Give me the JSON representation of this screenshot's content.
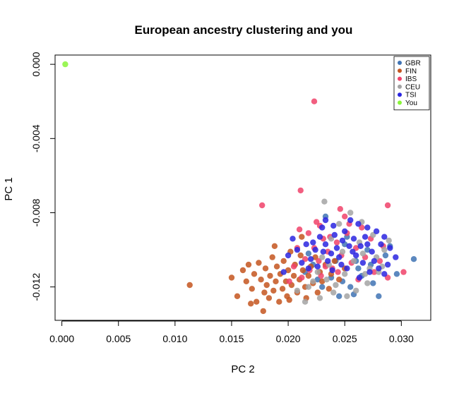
{
  "chart_data": {
    "type": "scatter",
    "title": "European ancestry clustering and you",
    "xlabel": "PC 2",
    "ylabel": "PC 1",
    "xlim": [
      -0.0006,
      0.0326
    ],
    "ylim": [
      -0.0138,
      0.0005
    ],
    "x_ticks": [
      0.0,
      0.005,
      0.01,
      0.015,
      0.02,
      0.025,
      0.03
    ],
    "x_tick_labels": [
      "0.000",
      "0.005",
      "0.010",
      "0.015",
      "0.020",
      "0.025",
      "0.030"
    ],
    "y_ticks": [
      0.0,
      -0.004,
      -0.008,
      -0.012
    ],
    "y_tick_labels": [
      "0.000",
      "-0.004",
      "-0.008",
      "-0.012"
    ],
    "grid": false,
    "legend_position": "top-right",
    "series": [
      {
        "name": "GBR",
        "color": "#3F73B4",
        "points": [
          [
            0.0311,
            -0.0105
          ],
          [
            0.0296,
            -0.0113
          ],
          [
            0.028,
            -0.0125
          ],
          [
            0.0275,
            -0.0118
          ],
          [
            0.0262,
            -0.011
          ],
          [
            0.0255,
            -0.012
          ],
          [
            0.027,
            -0.01
          ],
          [
            0.025,
            -0.0097
          ],
          [
            0.0245,
            -0.0125
          ],
          [
            0.0238,
            -0.0115
          ],
          [
            0.023,
            -0.012
          ],
          [
            0.0233,
            -0.0082
          ],
          [
            0.0222,
            -0.0108
          ],
          [
            0.0215,
            -0.0112
          ],
          [
            0.0258,
            -0.0124
          ],
          [
            0.0265,
            -0.0114
          ],
          [
            0.0242,
            -0.0106
          ],
          [
            0.0226,
            -0.0116
          ],
          [
            0.0218,
            -0.0102
          ],
          [
            0.0252,
            -0.0093
          ],
          [
            0.0248,
            -0.0117
          ],
          [
            0.026,
            -0.0106
          ],
          [
            0.0273,
            -0.0108
          ],
          [
            0.0286,
            -0.0103
          ],
          [
            0.029,
            -0.0098
          ]
        ]
      },
      {
        "name": "FIN",
        "color": "#C4551F",
        "points": [
          [
            0.0113,
            -0.0119
          ],
          [
            0.015,
            -0.0115
          ],
          [
            0.0155,
            -0.0125
          ],
          [
            0.016,
            -0.0111
          ],
          [
            0.0163,
            -0.0117
          ],
          [
            0.0165,
            -0.0108
          ],
          [
            0.0168,
            -0.0121
          ],
          [
            0.017,
            -0.0113
          ],
          [
            0.0172,
            -0.0128
          ],
          [
            0.0174,
            -0.0107
          ],
          [
            0.0176,
            -0.0116
          ],
          [
            0.0178,
            -0.0133
          ],
          [
            0.018,
            -0.011
          ],
          [
            0.0181,
            -0.0119
          ],
          [
            0.0183,
            -0.0126
          ],
          [
            0.0184,
            -0.0114
          ],
          [
            0.0186,
            -0.0104
          ],
          [
            0.0187,
            -0.0122
          ],
          [
            0.0189,
            -0.0117
          ],
          [
            0.019,
            -0.0109
          ],
          [
            0.0192,
            -0.0128
          ],
          [
            0.0193,
            -0.0113
          ],
          [
            0.0195,
            -0.0121
          ],
          [
            0.0196,
            -0.0106
          ],
          [
            0.0198,
            -0.0117
          ],
          [
            0.0199,
            -0.0125
          ],
          [
            0.02,
            -0.0111
          ],
          [
            0.0202,
            -0.0101
          ],
          [
            0.0203,
            -0.0119
          ],
          [
            0.0205,
            -0.0114
          ],
          [
            0.0206,
            -0.0108
          ],
          [
            0.0208,
            -0.0123
          ],
          [
            0.021,
            -0.0116
          ],
          [
            0.0211,
            -0.0103
          ],
          [
            0.0213,
            -0.0111
          ],
          [
            0.0215,
            -0.012
          ],
          [
            0.0216,
            -0.0126
          ],
          [
            0.0218,
            -0.0114
          ],
          [
            0.022,
            -0.0109
          ],
          [
            0.0222,
            -0.0118
          ],
          [
            0.0224,
            -0.0104
          ],
          [
            0.0226,
            -0.0123
          ],
          [
            0.0228,
            -0.0112
          ],
          [
            0.023,
            -0.0117
          ],
          [
            0.0233,
            -0.0108
          ],
          [
            0.0236,
            -0.0121
          ],
          [
            0.0238,
            -0.0113
          ],
          [
            0.0241,
            -0.0106
          ],
          [
            0.0245,
            -0.0116
          ],
          [
            0.025,
            -0.011
          ],
          [
            0.0188,
            -0.0098
          ],
          [
            0.0212,
            -0.0093
          ],
          [
            0.0179,
            -0.0123
          ],
          [
            0.0167,
            -0.0129
          ],
          [
            0.0201,
            -0.0127
          ]
        ]
      },
      {
        "name": "IBS",
        "color": "#F0426A",
        "points": [
          [
            0.0223,
            -0.002
          ],
          [
            0.0211,
            -0.0068
          ],
          [
            0.0177,
            -0.0076
          ],
          [
            0.0288,
            -0.0076
          ],
          [
            0.0246,
            -0.0078
          ],
          [
            0.025,
            -0.0082
          ],
          [
            0.0228,
            -0.0087
          ],
          [
            0.021,
            -0.0089
          ],
          [
            0.0302,
            -0.0112
          ],
          [
            0.0288,
            -0.0115
          ],
          [
            0.0281,
            -0.0106
          ],
          [
            0.0273,
            -0.0094
          ],
          [
            0.0265,
            -0.0088
          ],
          [
            0.026,
            -0.0099
          ],
          [
            0.0256,
            -0.0107
          ],
          [
            0.0252,
            -0.0091
          ],
          [
            0.0247,
            -0.0103
          ],
          [
            0.0243,
            -0.0096
          ],
          [
            0.0239,
            -0.011
          ],
          [
            0.0235,
            -0.0101
          ],
          [
            0.0231,
            -0.0094
          ],
          [
            0.0227,
            -0.0106
          ],
          [
            0.0223,
            -0.0099
          ],
          [
            0.0219,
            -0.0111
          ],
          [
            0.0215,
            -0.0105
          ],
          [
            0.0212,
            -0.0115
          ],
          [
            0.0208,
            -0.0099
          ],
          [
            0.0205,
            -0.0109
          ],
          [
            0.0201,
            -0.0117
          ],
          [
            0.0229,
            -0.0114
          ],
          [
            0.0237,
            -0.0093
          ],
          [
            0.0268,
            -0.0104
          ],
          [
            0.0276,
            -0.0112
          ],
          [
            0.0284,
            -0.0098
          ],
          [
            0.0262,
            -0.0116
          ],
          [
            0.0244,
            -0.0112
          ],
          [
            0.0218,
            -0.0091
          ],
          [
            0.0225,
            -0.0085
          ],
          [
            0.0254,
            -0.0086
          ],
          [
            0.0233,
            -0.0109
          ]
        ]
      },
      {
        "name": "CEU",
        "color": "#A3A3A3",
        "points": [
          [
            0.0232,
            -0.0074
          ],
          [
            0.0215,
            -0.0128
          ],
          [
            0.0208,
            -0.0122
          ],
          [
            0.0228,
            -0.0126
          ],
          [
            0.024,
            -0.0123
          ],
          [
            0.026,
            -0.0122
          ],
          [
            0.027,
            -0.0118
          ],
          [
            0.028,
            -0.0112
          ],
          [
            0.0285,
            -0.01
          ],
          [
            0.0275,
            -0.0092
          ],
          [
            0.0265,
            -0.0085
          ],
          [
            0.0255,
            -0.008
          ],
          [
            0.0245,
            -0.0086
          ],
          [
            0.0238,
            -0.0094
          ],
          [
            0.023,
            -0.0104
          ],
          [
            0.0222,
            -0.0117
          ],
          [
            0.025,
            -0.0113
          ],
          [
            0.0258,
            -0.0106
          ],
          [
            0.0266,
            -0.0102
          ],
          [
            0.0272,
            -0.011
          ],
          [
            0.0278,
            -0.0104
          ],
          [
            0.0283,
            -0.0109
          ],
          [
            0.0248,
            -0.0101
          ],
          [
            0.0236,
            -0.0108
          ],
          [
            0.0226,
            -0.0112
          ],
          [
            0.0218,
            -0.012
          ],
          [
            0.0263,
            -0.0096
          ],
          [
            0.0242,
            -0.0119
          ],
          [
            0.0252,
            -0.0125
          ],
          [
            0.0289,
            -0.0095
          ],
          [
            0.0234,
            -0.0116
          ],
          [
            0.0268,
            -0.0113
          ]
        ]
      },
      {
        "name": "TSI",
        "color": "#2A24E0",
        "points": [
          [
            0.0233,
            -0.0084
          ],
          [
            0.023,
            -0.0088
          ],
          [
            0.024,
            -0.0087
          ],
          [
            0.0255,
            -0.0084
          ],
          [
            0.0262,
            -0.0086
          ],
          [
            0.027,
            -0.0088
          ],
          [
            0.0278,
            -0.009
          ],
          [
            0.0285,
            -0.0093
          ],
          [
            0.029,
            -0.0099
          ],
          [
            0.0295,
            -0.0104
          ],
          [
            0.0288,
            -0.0108
          ],
          [
            0.028,
            -0.011
          ],
          [
            0.0272,
            -0.0112
          ],
          [
            0.0266,
            -0.0107
          ],
          [
            0.026,
            -0.0103
          ],
          [
            0.0254,
            -0.0098
          ],
          [
            0.0248,
            -0.0095
          ],
          [
            0.0243,
            -0.0099
          ],
          [
            0.0238,
            -0.0102
          ],
          [
            0.0233,
            -0.0097
          ],
          [
            0.0228,
            -0.0093
          ],
          [
            0.0224,
            -0.01
          ],
          [
            0.022,
            -0.0105
          ],
          [
            0.0216,
            -0.0097
          ],
          [
            0.0212,
            -0.0107
          ],
          [
            0.0208,
            -0.01
          ],
          [
            0.0204,
            -0.0094
          ],
          [
            0.02,
            -0.0103
          ],
          [
            0.0196,
            -0.0112
          ],
          [
            0.0226,
            -0.0109
          ],
          [
            0.0235,
            -0.0106
          ],
          [
            0.0245,
            -0.0104
          ],
          [
            0.0252,
            -0.011
          ],
          [
            0.0258,
            -0.0094
          ],
          [
            0.0264,
            -0.0098
          ],
          [
            0.0274,
            -0.0101
          ],
          [
            0.0282,
            -0.0097
          ],
          [
            0.0276,
            -0.0106
          ],
          [
            0.0268,
            -0.0093
          ],
          [
            0.025,
            -0.009
          ],
          [
            0.0241,
            -0.0092
          ],
          [
            0.0231,
            -0.0101
          ],
          [
            0.0222,
            -0.0096
          ],
          [
            0.0247,
            -0.0108
          ],
          [
            0.0257,
            -0.0101
          ],
          [
            0.0263,
            -0.0115
          ],
          [
            0.027,
            -0.0097
          ],
          [
            0.0239,
            -0.0111
          ],
          [
            0.0218,
            -0.011
          ],
          [
            0.0285,
            -0.0113
          ]
        ]
      },
      {
        "name": "You",
        "color": "#89F53A",
        "points": [
          [
            0.0003,
            0.0
          ]
        ]
      }
    ]
  }
}
